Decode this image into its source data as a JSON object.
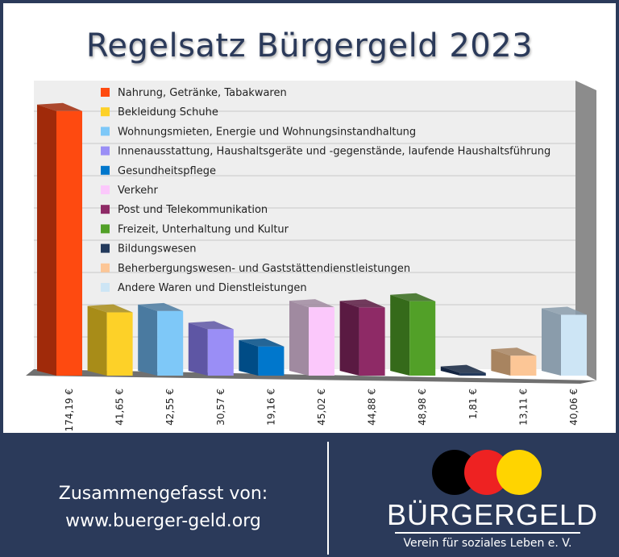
{
  "chart_data": {
    "type": "bar",
    "title": "Regelsatz Bürgergeld 2023",
    "categories": [
      "Nahrung, Getränke, Tabakwaren",
      "Bekleidung Schuhe",
      "Wohnungsmieten, Energie und Wohnungsinstandhaltung",
      "Innenausstattung, Haushaltsgeräte und -gegenstände, laufende Haushaltsführung",
      "Gesundheitspflege",
      "Verkehr",
      "Post und Telekommunikation",
      "Freizeit, Unterhaltung und Kultur",
      "Bildungswesen",
      "Beherbergungswesen- und Gaststättendienstleistungen",
      "Andere Waren und Dienstleistungen"
    ],
    "values": [
      174.19,
      41.65,
      42.55,
      30.57,
      19.16,
      45.02,
      44.88,
      48.98,
      1.81,
      13.11,
      40.06
    ],
    "value_labels": [
      "174,19 €",
      "41,65 €",
      "42,55 €",
      "30,57 €",
      "19,16 €",
      "45,02 €",
      "44,88 €",
      "48,98 €",
      "1,81 €",
      "13,11 €",
      "40,06 €"
    ],
    "colors": [
      "#fe4a10",
      "#fdd128",
      "#7ec8f8",
      "#9a8ef6",
      "#0077cc",
      "#fbc8fb",
      "#8e2a66",
      "#52a028",
      "#233a5c",
      "#fcc696",
      "#cde5f5"
    ],
    "side_colors": [
      "#a02a0a",
      "#a88c18",
      "#4a7aa0",
      "#5e56a4",
      "#004c86",
      "#a08aa0",
      "#5a1a42",
      "#356a1a",
      "#132440",
      "#a88460",
      "#8a9cab"
    ],
    "ylim": [
      0,
      190
    ],
    "grid": true,
    "legend": "top-center"
  },
  "footer": {
    "line1": "Zusammengefasst von:",
    "line2": "www.buerger-geld.org"
  },
  "logo": {
    "circle_colors": [
      "#000000",
      "#ee2222",
      "#ffd400"
    ],
    "brand": "BÜRGERGELD",
    "slogan": "Verein für soziales Leben e. V."
  }
}
